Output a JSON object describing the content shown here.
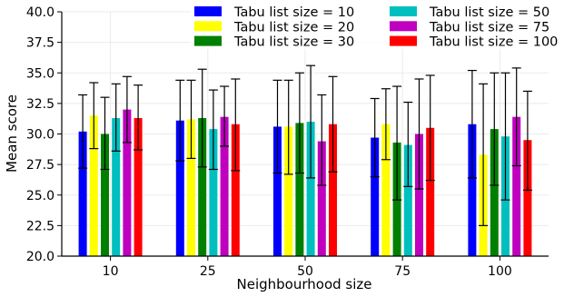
{
  "chart_data": {
    "type": "bar",
    "title": "",
    "xlabel": "Neighbourhood size",
    "ylabel": "Mean score",
    "ylim": [
      20.0,
      40.0
    ],
    "yticks": [
      "20.0",
      "22.5",
      "25.0",
      "27.5",
      "30.0",
      "32.5",
      "35.0",
      "37.5",
      "40.0"
    ],
    "categories": [
      "10",
      "25",
      "50",
      "75",
      "100"
    ],
    "grid": true,
    "legend_position": "top-right",
    "series": [
      {
        "name": "Tabu list size = 10",
        "color": "#0000ff",
        "values": [
          30.2,
          31.1,
          30.6,
          29.7,
          30.8
        ],
        "error_low": [
          27.2,
          27.8,
          26.8,
          26.5,
          26.4
        ],
        "error_high": [
          33.2,
          34.4,
          34.4,
          32.9,
          35.2
        ]
      },
      {
        "name": "Tabu list size = 20",
        "color": "#ffff00",
        "values": [
          31.5,
          31.2,
          30.6,
          30.8,
          28.3
        ],
        "error_low": [
          28.8,
          28.0,
          26.7,
          27.9,
          22.5
        ],
        "error_high": [
          34.2,
          34.4,
          34.4,
          33.7,
          34.1
        ]
      },
      {
        "name": "Tabu list size = 30",
        "color": "#008000",
        "values": [
          30.0,
          31.3,
          30.9,
          29.3,
          30.4
        ],
        "error_low": [
          27.1,
          27.3,
          26.8,
          24.6,
          25.8
        ],
        "error_high": [
          33.0,
          35.3,
          35.0,
          33.9,
          35.0
        ]
      },
      {
        "name": "Tabu list size = 50",
        "color": "#00bfbf",
        "values": [
          31.3,
          30.4,
          31.0,
          29.1,
          29.8
        ],
        "error_low": [
          28.6,
          27.1,
          26.4,
          25.7,
          24.6
        ],
        "error_high": [
          34.1,
          33.6,
          35.6,
          32.6,
          35.0
        ]
      },
      {
        "name": "Tabu list size = 75",
        "color": "#bf00bf",
        "values": [
          32.0,
          31.4,
          29.4,
          30.0,
          31.4
        ],
        "error_low": [
          29.3,
          29.0,
          25.8,
          25.5,
          27.4
        ],
        "error_high": [
          34.7,
          33.9,
          33.2,
          34.5,
          35.4
        ]
      },
      {
        "name": "Tabu list size = 100",
        "color": "#ff0000",
        "values": [
          31.3,
          30.8,
          30.8,
          30.5,
          29.5
        ],
        "error_low": [
          28.7,
          27.0,
          26.9,
          26.2,
          25.4
        ],
        "error_high": [
          34.0,
          34.5,
          34.7,
          34.8,
          33.5
        ]
      }
    ]
  }
}
